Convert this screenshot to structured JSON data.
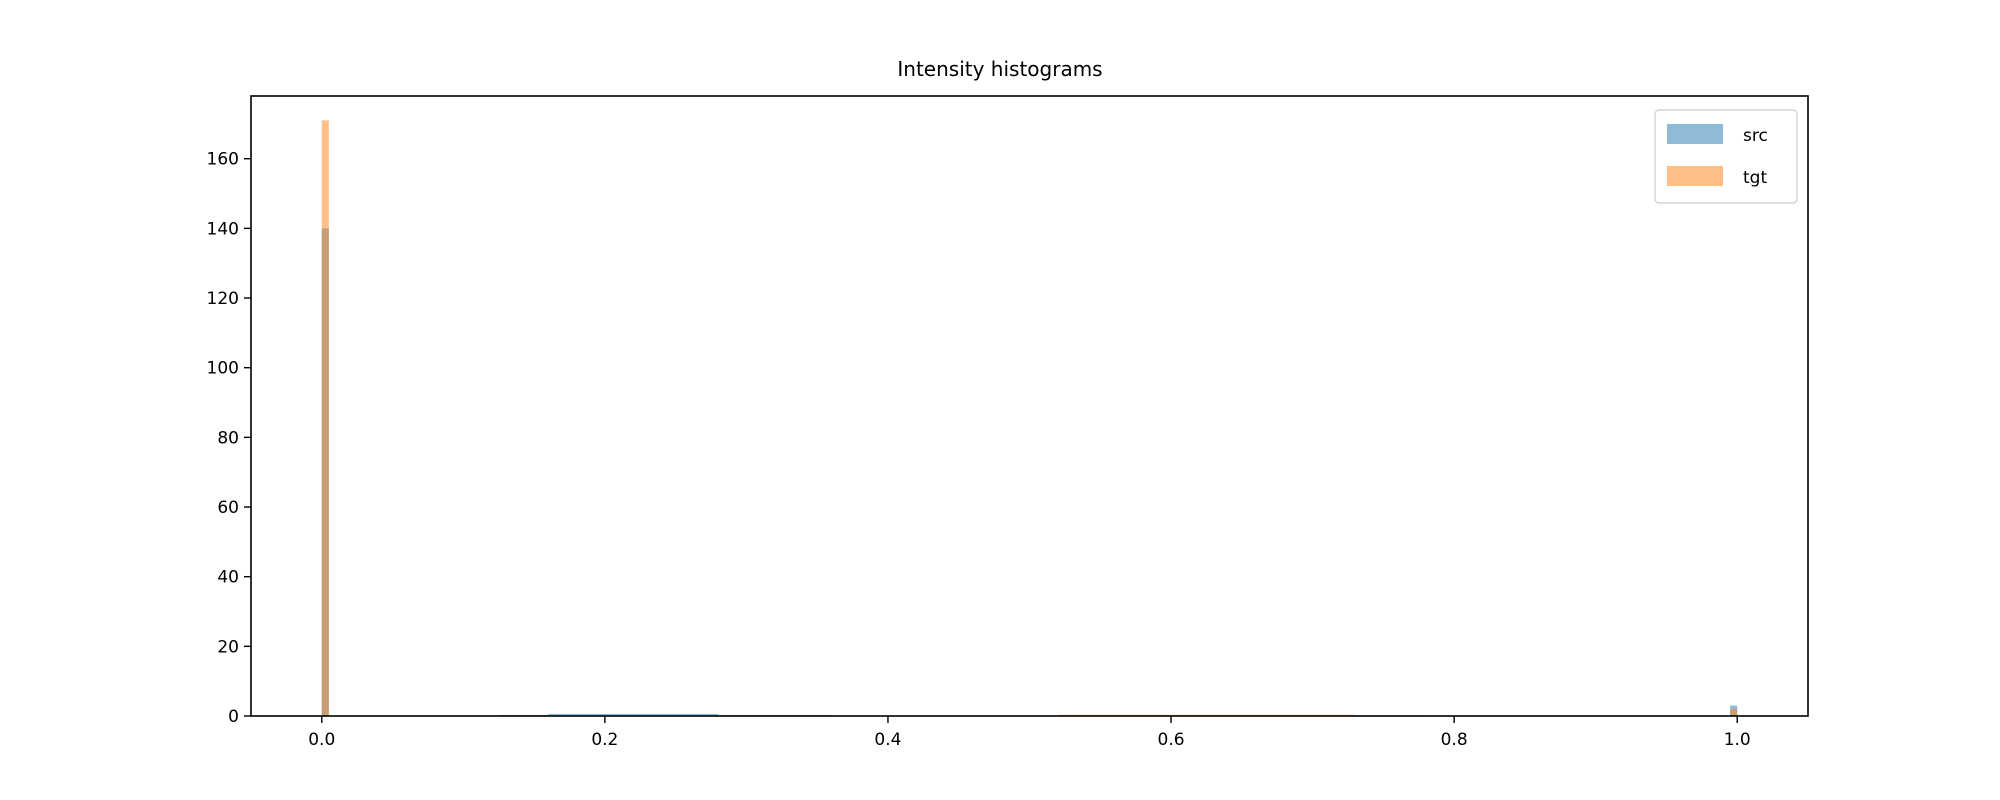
{
  "chart_data": {
    "type": "bar",
    "subtype": "overlaid-histogram",
    "title": "Intensity histograms",
    "xlabel": "",
    "ylabel": "",
    "xlim": [
      -0.05,
      1.05
    ],
    "ylim": [
      0,
      178
    ],
    "xticks": [
      0.0,
      0.2,
      0.4,
      0.6,
      0.8,
      1.0
    ],
    "xtick_labels": [
      "0.0",
      "0.2",
      "0.4",
      "0.6",
      "0.8",
      "1.0"
    ],
    "yticks": [
      0,
      20,
      40,
      60,
      80,
      100,
      120,
      140,
      160
    ],
    "ytick_labels": [
      "0",
      "20",
      "40",
      "60",
      "80",
      "100",
      "120",
      "140",
      "160"
    ],
    "grid": false,
    "legend_position": "top-right",
    "bin_width": 0.005,
    "series": [
      {
        "name": "src",
        "color": "#1f77b4",
        "opacity": 0.5,
        "x": [
          0.0,
          0.125,
          0.16,
          0.2,
          0.21,
          0.24,
          0.28,
          0.36,
          0.52,
          0.6,
          0.7,
          0.78,
          0.995
        ],
        "values": [
          140,
          0.3,
          0.5,
          0.6,
          0.7,
          0.6,
          0.5,
          0.2,
          0.15,
          0.25,
          0.3,
          0.2,
          3
        ],
        "segments": [
          {
            "x0": 0.125,
            "x1": 0.16,
            "value": 0.3
          },
          {
            "x0": 0.16,
            "x1": 0.28,
            "value": 0.6
          },
          {
            "x0": 0.28,
            "x1": 0.36,
            "value": 0.3
          },
          {
            "x0": 0.52,
            "x1": 0.78,
            "value": 0.2
          }
        ]
      },
      {
        "name": "tgt",
        "color": "#ff7f0e",
        "opacity": 0.5,
        "x": [
          0.0,
          0.52,
          0.6,
          0.7,
          0.995
        ],
        "values": [
          171,
          0.3,
          0.4,
          0.3,
          2
        ],
        "segments": [
          {
            "x0": 0.52,
            "x1": 0.73,
            "value": 0.35
          }
        ]
      }
    ]
  }
}
